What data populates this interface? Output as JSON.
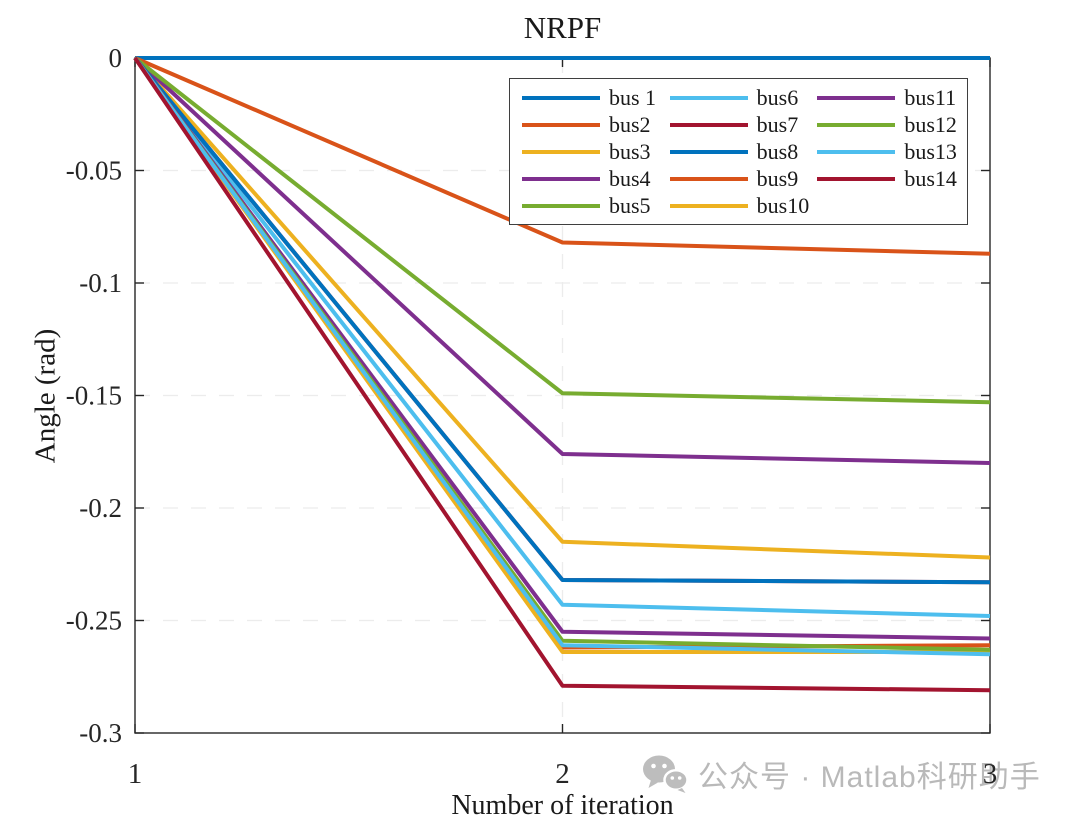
{
  "chart_data": {
    "type": "line",
    "title": "NRPF",
    "xlabel": "Number of iteration",
    "ylabel": "Angle (rad)",
    "x": [
      1,
      2,
      3
    ],
    "xlim": [
      1,
      3
    ],
    "ylim": [
      -0.3,
      0
    ],
    "xticks": {
      "values": [
        1,
        2,
        3
      ],
      "labels": [
        "1",
        "2",
        "3"
      ]
    },
    "yticks": {
      "values": [
        0,
        -0.05,
        -0.1,
        -0.15,
        -0.2,
        -0.25,
        -0.3
      ],
      "labels": [
        "0",
        "-0.05",
        "-0.1",
        "-0.15",
        "-0.2",
        "-0.25",
        "-0.3"
      ]
    },
    "grid": true,
    "legend_position": "inside upper center-right, 3 columns, column-major",
    "series": [
      {
        "name": "bus 1",
        "color": "#0072BD",
        "values": [
          0,
          0,
          0
        ]
      },
      {
        "name": "bus2",
        "color": "#D95319",
        "values": [
          0,
          -0.082,
          -0.087
        ]
      },
      {
        "name": "bus3",
        "color": "#EDB120",
        "values": [
          0,
          -0.215,
          -0.222
        ]
      },
      {
        "name": "bus4",
        "color": "#7E2F8E",
        "values": [
          0,
          -0.176,
          -0.18
        ]
      },
      {
        "name": "bus5",
        "color": "#77AC30",
        "values": [
          0,
          -0.149,
          -0.153
        ]
      },
      {
        "name": "bus6",
        "color": "#4DBEEE",
        "values": [
          0,
          -0.243,
          -0.248
        ]
      },
      {
        "name": "bus7",
        "color": "#A2142F",
        "values": [
          0,
          -0.232,
          -0.233
        ]
      },
      {
        "name": "bus8",
        "color": "#0072BD",
        "values": [
          0,
          -0.232,
          -0.233
        ]
      },
      {
        "name": "bus9",
        "color": "#D95319",
        "values": [
          0,
          -0.262,
          -0.261
        ]
      },
      {
        "name": "bus10",
        "color": "#EDB120",
        "values": [
          0,
          -0.264,
          -0.264
        ]
      },
      {
        "name": "bus11",
        "color": "#7E2F8E",
        "values": [
          0,
          -0.255,
          -0.258
        ]
      },
      {
        "name": "bus12",
        "color": "#77AC30",
        "values": [
          0,
          -0.259,
          -0.263
        ]
      },
      {
        "name": "bus13",
        "color": "#4DBEEE",
        "values": [
          0,
          -0.261,
          -0.265
        ]
      },
      {
        "name": "bus14",
        "color": "#A2142F",
        "values": [
          0,
          -0.279,
          -0.281
        ]
      }
    ]
  },
  "watermark": {
    "icon": "wechat-icon",
    "text": "公众号 · Matlab科研助手",
    "color": "#b9b9b9"
  },
  "style_colors": {
    "axis": "#262626",
    "grid": "#ececec",
    "legend_border": "#3f3f3f"
  }
}
